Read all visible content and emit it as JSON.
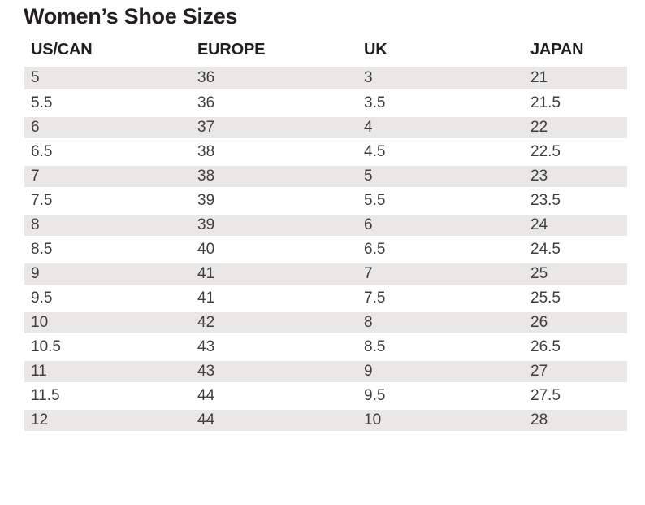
{
  "title": "Women’s Shoe Sizes",
  "colors": {
    "background": "#ffffff",
    "row_stripe": "#e9e8e6",
    "heading_text": "#231f20",
    "cell_text": "#3e3e3e"
  },
  "chart_data": {
    "type": "table",
    "title": "Women’s Shoe Sizes",
    "columns": [
      "US/CAN",
      "EUROPE",
      "UK",
      "JAPAN"
    ],
    "rows": [
      [
        "5",
        "36",
        "3",
        "21"
      ],
      [
        "5.5",
        "36",
        "3.5",
        "21.5"
      ],
      [
        "6",
        "37",
        "4",
        "22"
      ],
      [
        "6.5",
        "38",
        "4.5",
        "22.5"
      ],
      [
        "7",
        "38",
        "5",
        "23"
      ],
      [
        "7.5",
        "39",
        "5.5",
        "23.5"
      ],
      [
        "8",
        "39",
        "6",
        "24"
      ],
      [
        "8.5",
        "40",
        "6.5",
        "24.5"
      ],
      [
        "9",
        "41",
        "7",
        "25"
      ],
      [
        "9.5",
        "41",
        "7.5",
        "25.5"
      ],
      [
        "10",
        "42",
        "8",
        "26"
      ],
      [
        "10.5",
        "43",
        "8.5",
        "26.5"
      ],
      [
        "11",
        "43",
        "9",
        "27"
      ],
      [
        "11.5",
        "44",
        "9.5",
        "27.5"
      ],
      [
        "12",
        "44",
        "10",
        "28"
      ]
    ],
    "layout": {
      "stripe_pattern": "odd-rows-shaded",
      "header_style": "bold-no-background",
      "gridlines": "none"
    }
  }
}
